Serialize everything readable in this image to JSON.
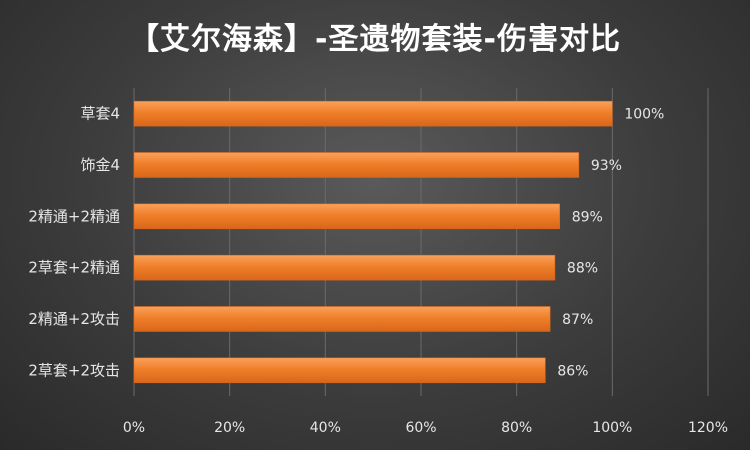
{
  "chart_data": {
    "type": "bar",
    "orientation": "horizontal",
    "title": "【艾尔海森】-圣遗物套装-伤害对比",
    "categories": [
      "草套4",
      "饰金4",
      "2精通+2精通",
      "2草套+2精通",
      "2精通+2攻击",
      "2草套+2攻击"
    ],
    "values": [
      100,
      93,
      89,
      88,
      87,
      86
    ],
    "value_labels": [
      "100%",
      "93%",
      "89%",
      "88%",
      "87%",
      "86%"
    ],
    "x_ticks": [
      "0%",
      "20%",
      "40%",
      "60%",
      "80%",
      "100%",
      "120%"
    ],
    "xlim": [
      0,
      120
    ],
    "grid": true,
    "legend": "none",
    "colors": {
      "bar": "#f07f2a",
      "bar_light": "#f9a15a",
      "bar_dark": "#d9661a",
      "grid": "#6a6a6a",
      "text": "#e6e6e6",
      "title": "#ffffff"
    }
  }
}
